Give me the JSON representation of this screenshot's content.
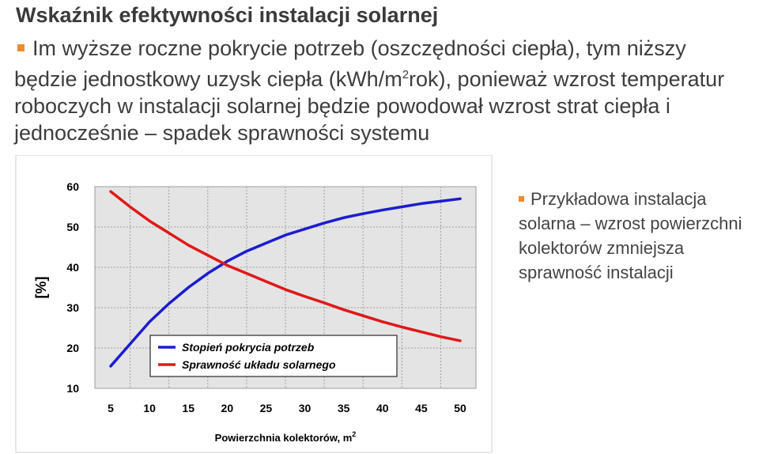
{
  "slide": {
    "title": "Wskaźnik efektywności instalacji solarnej",
    "paragraph_before_sup": "Im wyższe roczne pokrycie potrzeb (oszczędności ciepła), tym niższy będzie jednostkowy uzysk ciepła (kWh/m",
    "paragraph_sup": "2",
    "paragraph_after_sup": "rok), ponieważ wzrost temperatur roboczych w instalacji solarnej będzie powodował wzrost strat ciepła i jednocześnie – spadek sprawności systemu",
    "side_note": "Przykładowa instalacja solarna – wzrost powierzchni kolektorów zmniejsza sprawność instalacji"
  },
  "colors": {
    "bullet": "#f08a2c",
    "plot_background": "#e4e4e4",
    "series_1": "#1c1cd0",
    "series_2": "#e01818"
  },
  "chart_data": {
    "type": "line",
    "title": "",
    "xlabel": "Powierzchnia kolektorów, m",
    "xlabel_sup": "2",
    "ylabel": "[%]",
    "xlim": [
      5,
      50
    ],
    "ylim": [
      10,
      60
    ],
    "xticks": [
      5,
      10,
      15,
      20,
      25,
      30,
      35,
      40,
      45,
      50
    ],
    "yticks": [
      10,
      20,
      30,
      40,
      50,
      60
    ],
    "grid": true,
    "legend_position": "bottom-center",
    "series": [
      {
        "name": "Stopień pokrycia potrzeb",
        "color": "#1c1cd0",
        "x": [
          5,
          7.5,
          10,
          12.5,
          15,
          17.5,
          20,
          22.5,
          25,
          27.5,
          30,
          32.5,
          35,
          37.5,
          40,
          42.5,
          45,
          47.5,
          50
        ],
        "y": [
          15.5,
          21,
          26.5,
          31,
          35,
          38.5,
          41.5,
          44,
          46,
          48,
          49.5,
          51,
          52.3,
          53.3,
          54.2,
          55,
          55.8,
          56.4,
          57
        ]
      },
      {
        "name": "Sprawność układu solarnego",
        "color": "#e01818",
        "x": [
          5,
          7.5,
          10,
          12.5,
          15,
          17.5,
          20,
          22.5,
          25,
          27.5,
          30,
          32.5,
          35,
          37.5,
          40,
          42.5,
          45,
          47.5,
          50
        ],
        "y": [
          58.8,
          55,
          51.5,
          48.5,
          45.5,
          43,
          40.5,
          38.5,
          36.5,
          34.5,
          32.8,
          31.2,
          29.5,
          28,
          26.5,
          25.2,
          24,
          22.8,
          21.8
        ]
      }
    ]
  }
}
